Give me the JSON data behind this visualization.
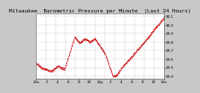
{
  "title": "Milwaukee  Barometric Pressure per Minute  (Last 24 Hours)",
  "bg_color": "#c8c8c8",
  "plot_bg_color": "#ffffff",
  "line_color": "#cc0000",
  "grid_color": "#888888",
  "ylim": [
    29.37,
    30.13
  ],
  "yticks": [
    29.4,
    29.5,
    29.6,
    29.7,
    29.8,
    29.9,
    30.0,
    30.1
  ],
  "num_points": 1440,
  "title_fontsize": 4.2,
  "tick_fontsize": 3.0,
  "xtick_labels": [
    "12a",
    "2",
    "4",
    "6",
    "8",
    "10",
    "12p",
    "2",
    "4",
    "6",
    "8",
    "10",
    "12a"
  ]
}
